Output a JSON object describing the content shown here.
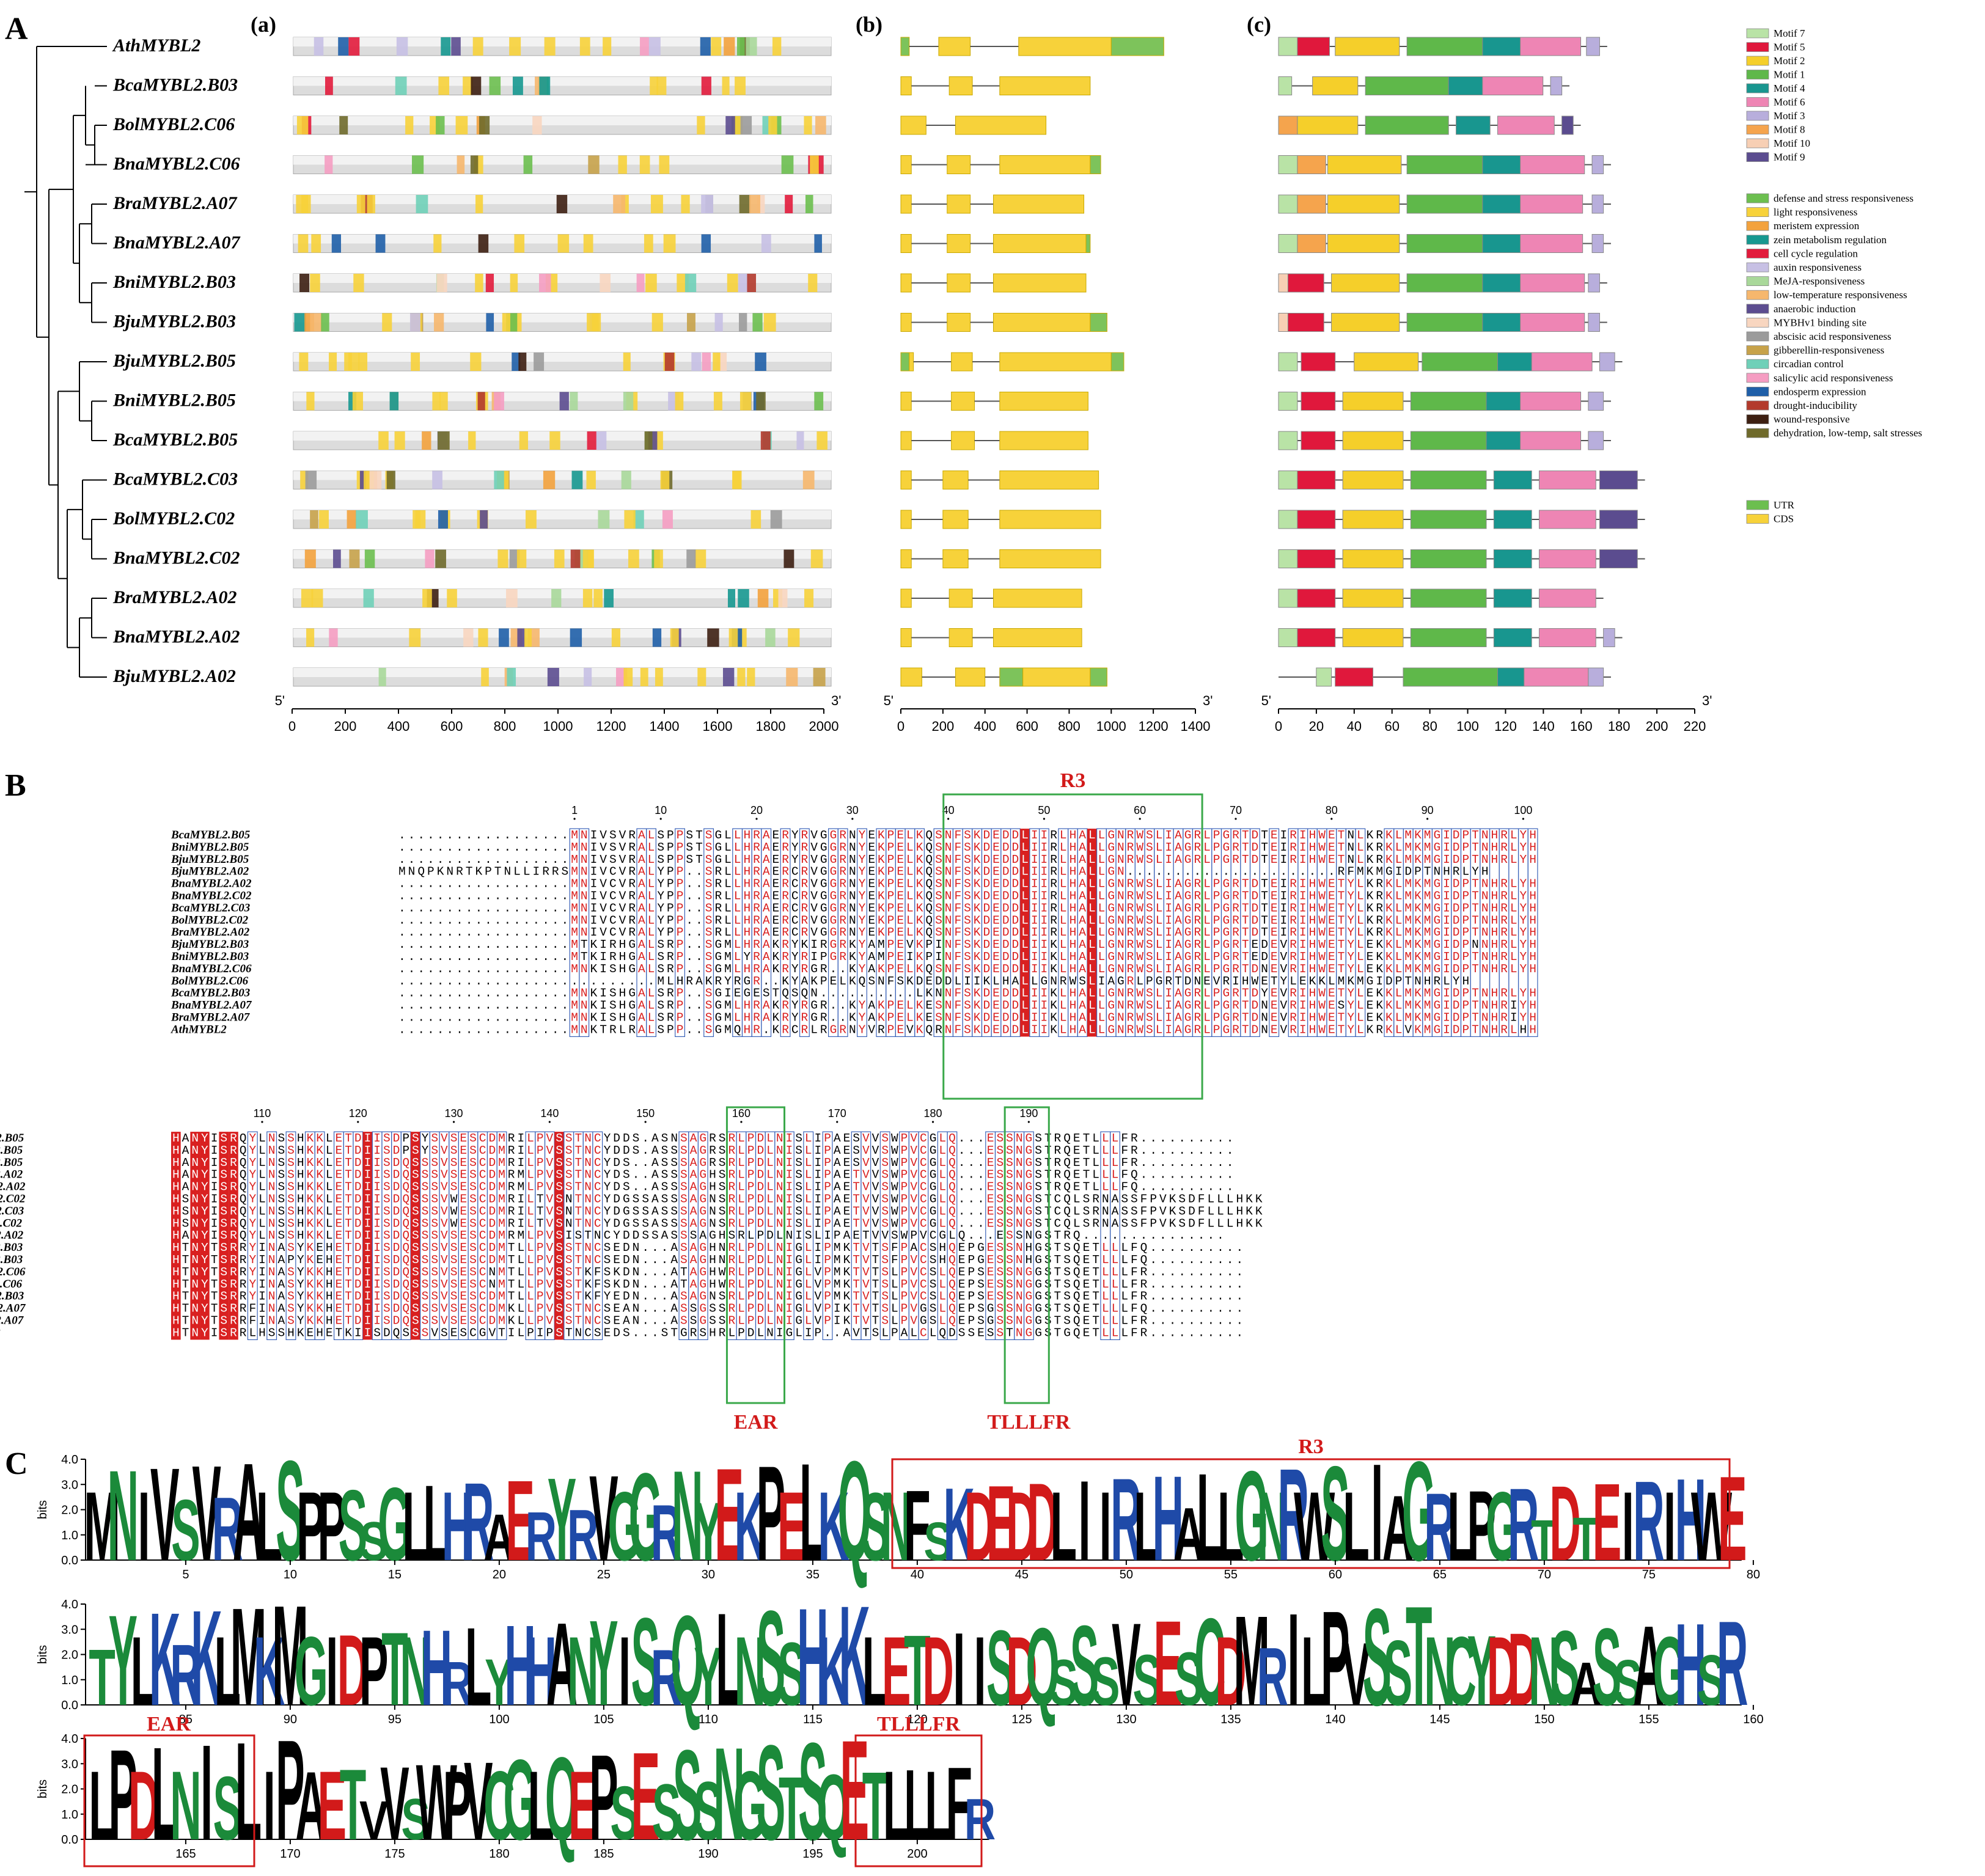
{
  "panels": {
    "A": {
      "letter": "A",
      "sub": [
        "(a)",
        "(b)",
        "(c)"
      ]
    },
    "B": {
      "letter": "B"
    },
    "C": {
      "letter": "C"
    }
  },
  "genes": [
    "AthMYBL2",
    "BcaMYBL2.B03",
    "BolMYBL2.C06",
    "BnaMYBL2.C06",
    "BraMYBL2.A07",
    "BnaMYBL2.A07",
    "BniMYBL2.B03",
    "BjuMYBL2.B03",
    "BjuMYBL2.B05",
    "BniMYBL2.B05",
    "BcaMYBL2.B05",
    "BcaMYBL2.C03",
    "BolMYBL2.C02",
    "BnaMYBL2.C02",
    "BraMYBL2.A02",
    "BnaMYBL2.A02",
    "BjuMYBL2.A02"
  ],
  "axes": {
    "promoter": {
      "ticks": [
        "0",
        "200",
        "400",
        "600",
        "800",
        "1000",
        "1200",
        "1400",
        "1600",
        "1800",
        "2000"
      ],
      "end5": "5'",
      "end3": "3'"
    },
    "gene_structure": {
      "ticks": [
        "0",
        "200",
        "400",
        "600",
        "800",
        "1000",
        "1200",
        "1400"
      ],
      "end5": "5'",
      "end3": "3'"
    },
    "motif": {
      "ticks": [
        "0",
        "20",
        "40",
        "60",
        "80",
        "100",
        "120",
        "140",
        "160",
        "180",
        "200",
        "220"
      ],
      "end5": "5'",
      "end3": "3'"
    }
  },
  "motif_legend": [
    {
      "label": "Motif 7",
      "color": "#b9e3a6"
    },
    {
      "label": "Motif 5",
      "color": "#e0183c"
    },
    {
      "label": "Motif 2",
      "color": "#f5cf2a"
    },
    {
      "label": "Motif 1",
      "color": "#5fb84a"
    },
    {
      "label": "Motif 4",
      "color": "#18968f"
    },
    {
      "label": "Motif 6",
      "color": "#ee85b4"
    },
    {
      "label": "Motif 3",
      "color": "#b8aedc"
    },
    {
      "label": "Motif 8",
      "color": "#f5a44d"
    },
    {
      "label": "Motif 10",
      "color": "#f7cfb4"
    },
    {
      "label": "Motif 9",
      "color": "#5b4c8f"
    }
  ],
  "cis_legend": [
    {
      "label": "defense and stress responsiveness",
      "color": "#6cbf4f"
    },
    {
      "label": "light responsiveness",
      "color": "#f7d23a"
    },
    {
      "label": "meristem expression",
      "color": "#f3a23d"
    },
    {
      "label": "zein metabolism regulation",
      "color": "#169890"
    },
    {
      "label": "cell cycle regulation",
      "color": "#e21b3c"
    },
    {
      "label": "auxin responsiveness",
      "color": "#c7c0e4"
    },
    {
      "label": "MeJA-responsiveness",
      "color": "#a9d89a"
    },
    {
      "label": "low-temperature responsiveness",
      "color": "#f6b76d"
    },
    {
      "label": "anaerobic induction",
      "color": "#5c4d90"
    },
    {
      "label": "MYBHv1 binding site",
      "color": "#f8d6c0"
    },
    {
      "label": "abscisic acid responsiveness",
      "color": "#9b9b9b"
    },
    {
      "label": "gibberellin-responsiveness",
      "color": "#c7a24a"
    },
    {
      "label": "circadian control",
      "color": "#6fd0b8"
    },
    {
      "label": "salicylic acid responsiveness",
      "color": "#f59dc2"
    },
    {
      "label": "endosperm expression",
      "color": "#1f5fa8"
    },
    {
      "label": "drought-inducibility",
      "color": "#b33a2c"
    },
    {
      "label": "wound-responsive",
      "color": "#3d1f12"
    },
    {
      "label": "dehydration, low-temp, salt stresses",
      "color": "#6f6a2b"
    }
  ],
  "structure_legend": [
    {
      "label": "UTR",
      "color": "#6cbf4f"
    },
    {
      "label": "CDS",
      "color": "#f7d23a"
    }
  ],
  "alignment": {
    "block1": {
      "names": [
        "BcaMYBL2.B05",
        "BniMYBL2.B05",
        "BjuMYBL2.B05",
        "BjuMYBL2.A02",
        "BnaMYBL2.A02",
        "BnaMYBL2.C02",
        "BcaMYBL2.C03",
        "BolMYBL2.C02",
        "BraMYBL2.A02",
        "BjuMYBL2.B03",
        "BniMYBL2.B03",
        "BnaMYBL2.C06",
        "BolMYBL2.C06",
        "BcaMYBL2.B03",
        "BnaMYBL2.A07",
        "BraMYBL2.A07",
        "AthMYBL2"
      ],
      "numbers": [
        "1",
        "10",
        "20",
        "30",
        "40",
        "50",
        "60",
        "70",
        "80",
        "90",
        "100"
      ],
      "seqs": [
        "..................MNIVSVRALSPPSTSGLLHRAERYRVGGRNYEKPELKQSNFSKDEDDLIIRLHALLGNRWSLIAGRLPGRTDTEIRIHWETNLKRKLMKMGIDPTNHRLYH",
        "..................MNIVSVRALSPPSTSGLLHRAERYRVGGRNYEKPELKQSNFSKDEDDLIIRLHALLGNRWSLIAGRLPGRTDTEIRIHWETNLKRKLMKMGIDPTNHRLYH",
        "..................MNIVSVRALSPPSTSGLLHRAERYRVGGRNYEKPELKQSNFSKDEDDLIIRLHALLGNRWSLIAGRLPGRTDTEIRIHWETNLKRKLMKMGIDPTNHRLYH",
        "MNQPKNRTKPTNLLIRRSMNIVCVRALYPP..SRLLHRAERCRVGGRNYEKPELKQSNFSKDEDDLIIRLHALLGN......................RFMKMGIDPTNHRLYH",
        "..................MNIVCVRALYPP..SRLLHRAERCRVGGRNYEKPELKQSNFSKDEDDLIIRLHALLGNRWSLIAGRLPGRTDTEIRIHWETYLKRKLMKMGIDPTNHRLYH",
        "..................MNIVCVRALYPP..SRLLHRAERCRVGGRNYEKPELKQSNFSKDEDDLIIRLHALLGNRWSLIAGRLPGRTDTEIRIHWETYLKRKLMKMGIDPTNHRLYH",
        "..................MNIVCVRALYPP..SRLLHRAERCRVGGRNYEKPELKQSNFSKDEDDLIIRLHALLGNRWSLIAGRLPGRTDTEIRIHWETYLKRKLMKMGIDPTNHRLYH",
        "..................MNIVCVRALYPP..SRLLHRAERCRVGGRNYEKPELKQSNFSKDEDDLIIRLHALLGNRWSLIAGRLPGRTDTEIRIHWETYLKRKLMKMGIDPTNHRLYH",
        "..................MNIVCVRALYPP..SRLLHRAERCRVGGRNYEKPELKQSNFSKDEDDLIIRLHALLGNRWSLIAGRLPGRTDTEIRIHWETYLKRKLMKMGIDPTNHRLYH",
        "..................MTKIRHGALSRP..SGMLHRAKRYKIRGRKYAMPEVKPINFSKDEDDLIIKLHALLGNRWSLIAGRLPGRTEDEVRIHWETYLEKKLMKMGIDPNNHRLYH",
        "..................MTKIRHGALSRP..SGMLYRAKRYRIPGRKYAMPEIKPINFSKDEDDLIIKLHALLGNRWSLIAGRLPGRTEDEVRIHWETYLEKKLMKMGIDPTNHRLYH",
        "..................MNKISHGALSRP..SGMLHRAKRYRGR..KYAKPELKQSNFSKDEDDLIIKLHALLGNRWSLIAGRLPGRTDNEVRIHWETYLEKKLMKMGIDPTNHRLYH",
        "...........................MLHRAKRYRGR..KYAKPELKQSNFSKDEDDLIIKLHALLGNRWSLIAGRLPGRTDNEVRIHWETYLEKKLMKMGIDPTNHRLYH",
        "..................MNKISHGALSRP..SGIEGESTQSQN..........LKNNFSKDEDDLIIKLHALLGNRWSLIAGRLPGRTDYEVRIHWETYLEKKLMKMGIDPTNHRLYH",
        "..................MNKISHGALSRP..SGMLHRAKRYRGR..KYAKPELKESNFSKDEDDLIIKLHALLGNRWSLIAGRLPGRTDNEVRIHWESYLEKKLMKMGIDPTNHRIYH",
        "..................MNKISHGALSRP..SGMLHRAKRYRGR..KYAKPELKESNFSKDEDDLIIKLHALLGNRWSLIAGRLPGRTDNEVRIHWETYLEKKLMKMGIDPTNHRIYH",
        "..................MNKTRLRALSPP..SGMQHR.KRCRLRGRNYVRPEVKQRNFSKDEDDLIIKLHALLGNRWSLIAGRLPGRTDNEVRIHWETYLKRKLVKMGIDPTNHRLHH"
      ]
    },
    "block2": {
      "names": [
        "BcaMYBL2.B05",
        "BniMYBL2.B05",
        "BjuMYBL2.B05",
        "BjuMYBL2.A02",
        "BnaMYBL2.A02",
        "BnaMYBL2.C02",
        "BcaMYBL2.C03",
        "BolMYBL2.C02",
        "BraMYBL2.A02",
        "BjuMYBL2.B03",
        "BniMYBL2.B03",
        "BnaMYBL2.C06",
        "BolMYBL2.C06",
        "BcaMYBL2.B03",
        "BnaMYBL2.A07",
        "BraMYBL2.A07",
        "AthMYBL2"
      ],
      "numbers": [
        "110",
        "120",
        "130",
        "140",
        "150",
        "160",
        "170",
        "180",
        "190"
      ],
      "seqs": [
        "HANYISRQYLNSSHKKLETDIISDPSYSVSESCDMRILPVSSTNCYDDS.ASNSAGRSRLPDLNISLIPAESVVSWPVCGLQ...ESSNGSTRQETLLLFR..........",
        "HANYISRQYLNSSHKKLETDIISDPSYSVSESCDMRILPVSSTNCYDDS.ASSSAGRSRLPDLNISLIPAESVVSWPVCGLQ...ESSNGSTRQETLLLFR..........",
        "HANYISRQYLNSSHKKLETDIISDQSSSVSESCDMRILPVSSTNCYDS..ASSSAGRSRLPDLNISLIPAESVVSWPVCGLQ...ESSNGSTRQETLLLFR..........",
        "HANYISRQYLNSSHKKLETDIISDQSSSVSESCDMRMLPVSSTNCYDS..ASSSAGHSRLPDLNISLIPAETVVSWPVCGLQ...ESSNGSTRQETLLLFQ..........",
        "HANYISRQYLNSSHKKLETDIISDQSSSVSESCDMRMLPVSSTNCYDS..ASSSAGHSRLPDLNISLIPAETVVSWPVCGLQ...ESSNGSTRQETLLLFQ..........",
        "HSNYISRQYLNSSHKKLETDIISDQSSSVWESCDMRILTVSNTNCYDGSSASSSAGNSRLPDLNISLIPAETVVSWPVCGLQ...ESSNGSTCQLSRNASSFPVKSDFLLLHKK",
        "HSNYISRQYLNSSHKKLETDIISDQSSSVWESCDMRILTVSNTNCYDGSSASSSAGNSRLPDLNISLIPAETVVSWPVCGLQ...ESSNGSTCQLSRNASSFPVKSDFLLLHKK",
        "HSNYISRQYLNSSHKKLETDIISDQSSSVWESCDMRILTVSNTNCYDGSSASSSAGNSRLPDLNISLIPAETVVSWPVCGLQ...ESSNGSTCQLSRNASSFPVKSDFLLLHKK",
        "HANYISRQYLNSSHKKLETDIISDQSSSVSESCDMRMLPVSISTNCYDDSSASSSAGHSRLPDLNISLIPAETVVSWPVCGLQ...ESSNGSTRQ...............",
        "HTNYTSRRYINASYKEHETDIISDQSSSVSESCDMTLLPVSSTNCSEDN...ASAGHNRLPDLNIGLIPMKTVTSFPACSHQEPGESSNHGSTSQETLLLFQ..........",
        "HTNYTSRRYINAPYKEHETDIISDQSSSVSESCDMTLLPVSSTNCSEDN...ASAGHNRLPDLNIGLIPMKTVTSFPVCSHQEPGESSNHGSTSQETLLLFQ..........",
        "HTNYTSRRYINASYKKHETDIISDQSSSVSESCNMTLLPVSSTKFSKDN...ATAGHWRLPDLNIGLVPMKTVTSLPVCSLQEPSESSNGGSTSQETLLLFR..........",
        "HTNYTSRRYINASYKKHETDIISDQSSSVSESCNMTLLPVSSTKFSKDN...ATAGHWRLPDLNIGLVPMKTVTSLPVCSLQEPSESSNGGSTSQETLLLFR..........",
        "HTNYTSRRYINASYKKHETDIISDQSSSVSESCDMTLLPVSSTKFYEDN...ASAGNSRLPDLNIGLVPMKTVTSLPVCSLQEPSESSNGGSTSQETLLLFR..........",
        "HTNYTSRRFINASYKKHETDIISDQSSSVSESCDMKLLPVSSTNCSEAN...ASSGSSRLPDLNIGLVPIKTVTSLPVGSLQEPSGSSNGGSTSQETLLLFQ..........",
        "HTNYTSRRFINASYKKHETDIISDQSSSVSESCDMKLLPVSSTNCSEAN...ASSGSSRLPDLNIGLVPIKTVTSLPVGSLQEPSGSSNGGSTSQETLLLFR..........",
        "HTNYISRRLHSSHKEHETKIISDQSSSVSESCGVTILPIPSTNCSEDS...STGRSHRLPDLNIGLIP..AVTSLPALCLQDSSESSTNGGSTGQETLLLFR.........."
      ]
    },
    "labels": {
      "r3": "R3",
      "ear": "EAR",
      "tlllfr": "TLLLFR"
    }
  },
  "logo": {
    "ylabel": "bits",
    "yticks": [
      "0.0",
      "1.0",
      "2.0",
      "3.0",
      "4.0"
    ],
    "row1": {
      "seq": "MNIVSVRALSPPSSGLLHRAERYRVGGRNYEKPELKQSNFSKDEDDLIIRLHALLGNRWSLIAGRLPGRTDTEIRIHWE",
      "ticks": [
        "5",
        "10",
        "15",
        "20",
        "25",
        "30",
        "35",
        "40",
        "45",
        "50",
        "55",
        "60",
        "65",
        "70",
        "75",
        "80"
      ]
    },
    "row2": {
      "seq": "TYLKRKLMKMGIDPTNHRLYHHANYISRQYLNSSHKKLETDIISDQSSSVSESCDMRILPVSSTNCYDDNSASSAGHSR",
      "ticks": [
        "85",
        "90",
        "95",
        "100",
        "105",
        "110",
        "115",
        "120",
        "125",
        "130",
        "135",
        "140",
        "145",
        "150",
        "155",
        "160"
      ]
    },
    "row3": {
      "seq": "LPDLNISLIPAETVVSWPVCGLQEPSESSSNGSTSQETLLLFR",
      "ticks": [
        "165",
        "170",
        "175",
        "180",
        "185",
        "190",
        "195",
        "200"
      ]
    },
    "labels": {
      "r3": "R3",
      "ear": "EAR",
      "tlllfr": "TLLLFR"
    }
  }
}
